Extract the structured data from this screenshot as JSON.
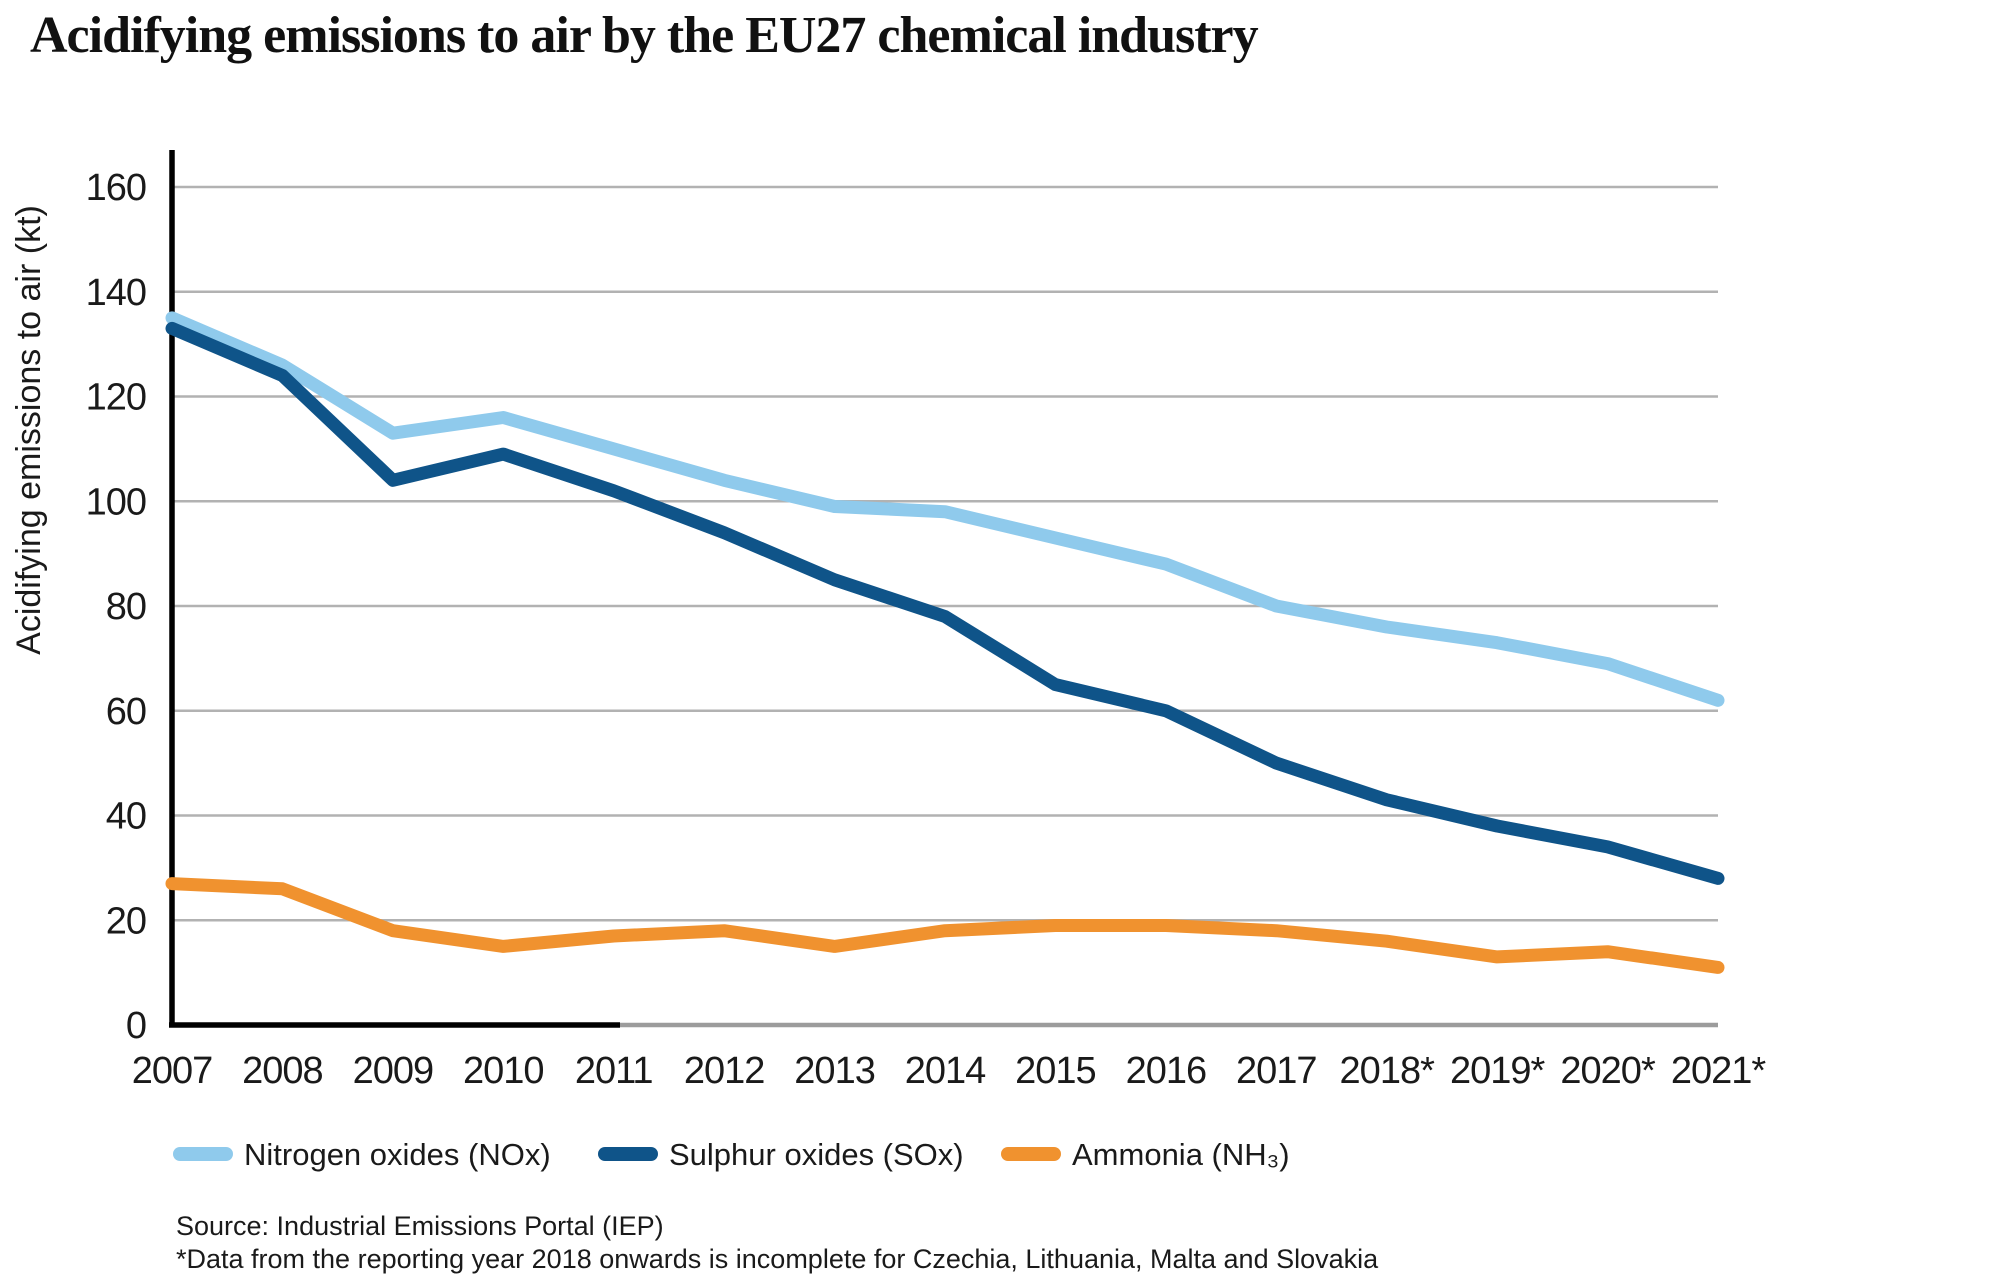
{
  "title": "Acidifying emissions to air by the EU27 chemical industry",
  "chart_data": {
    "type": "line",
    "title": "Acidifying emissions to air by the EU27 chemical industry",
    "xlabel": "",
    "ylabel": "Acidifying emissions to air (kt)",
    "ylim": [
      0,
      160
    ],
    "ytick_step": 20,
    "grid": true,
    "legend_position": "bottom",
    "categories": [
      "2007",
      "2008",
      "2009",
      "2010",
      "2011",
      "2012",
      "2013",
      "2014",
      "2015",
      "2016",
      "2017",
      "2018*",
      "2019*",
      "2020*",
      "2021*"
    ],
    "series": [
      {
        "name": "Nitrogen oxides (NOx)",
        "color": "#8FCAEC",
        "values": [
          135,
          126,
          113,
          116,
          110,
          104,
          99,
          98,
          93,
          88,
          80,
          76,
          73,
          69,
          62
        ]
      },
      {
        "name": "Sulphur oxides (SOx)",
        "color": "#0F5489",
        "values": [
          133,
          124,
          104,
          109,
          102,
          94,
          85,
          78,
          65,
          60,
          50,
          43,
          38,
          34,
          28
        ]
      },
      {
        "name": "Ammonia (NH₃)",
        "color": "#F0922F",
        "values": [
          27,
          26,
          18,
          15,
          17,
          18,
          15,
          18,
          19,
          19,
          18,
          16,
          13,
          14,
          11
        ]
      }
    ]
  },
  "footer": {
    "source": "Source: Industrial Emissions Portal (IEP)",
    "note": "*Data from the reporting year 2018 onwards is incomplete for Czechia, Lithuania, Malta and Slovakia"
  },
  "colors": {
    "grid": "#b2b2b2",
    "axis_black": "#000000",
    "axis_gray": "#9c9c9c",
    "text": "#1a1a1a"
  }
}
